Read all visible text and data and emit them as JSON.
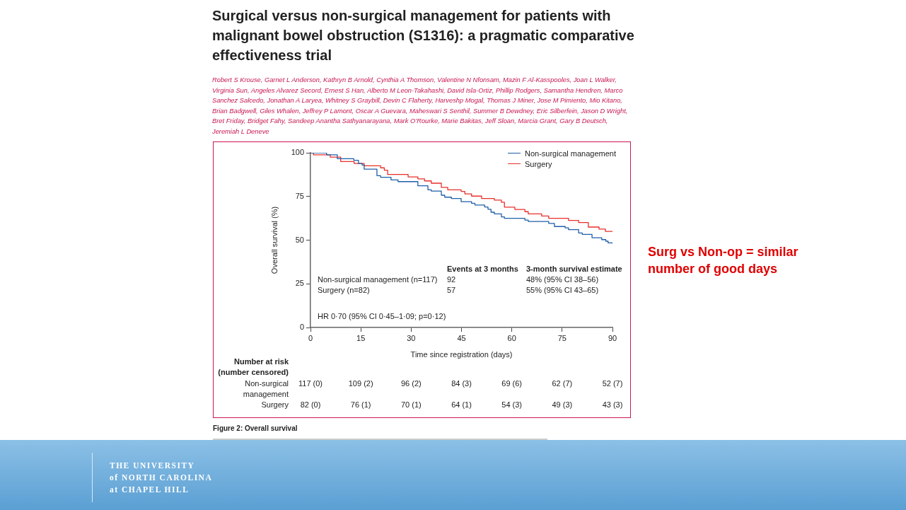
{
  "chart_data": {
    "type": "step",
    "title": "Surgical versus non-surgical management for patients with malignant bowel obstruction (S1316): a pragmatic comparative effectiveness trial",
    "xlabel": "Time since registration (days)",
    "ylabel": "Overall survival (%)",
    "xlim": [
      0,
      90
    ],
    "xticks": [
      0,
      15,
      30,
      45,
      60,
      75,
      90
    ],
    "ylim": [
      0,
      100
    ],
    "yticks": [
      0,
      25,
      50,
      75,
      100
    ],
    "grid": false,
    "legend": "top right",
    "series": [
      {
        "name": "Non-surgical management",
        "color": "#1f5fa8",
        "x": [
          0,
          4.8,
          8,
          12.9,
          14.3,
          15.4,
          16,
          19.8,
          20.9,
          24,
          26.1,
          32,
          35,
          36,
          39,
          40,
          42,
          44.9,
          48,
          49,
          51.9,
          52.9,
          53.8,
          54.8,
          56.9,
          57.8,
          63.9,
          64.9,
          71,
          72.7,
          75.9,
          76.9,
          79.9,
          81,
          83.9,
          86.8,
          88,
          88.7,
          90
        ],
        "values": [
          100,
          98.8,
          96.6,
          95.7,
          93.9,
          93,
          90.6,
          86.9,
          86,
          84.5,
          83.5,
          81.1,
          78.8,
          78.1,
          75.7,
          74.6,
          73.8,
          72,
          71.1,
          70.1,
          69,
          67.7,
          66,
          65,
          63.3,
          62.5,
          61.5,
          60.7,
          59.6,
          57.8,
          57,
          56,
          54.1,
          53.3,
          51.4,
          50.3,
          49.4,
          48.4,
          48
        ]
      },
      {
        "name": "Surgery",
        "color": "#e8302a",
        "x": [
          0,
          0.9,
          5.9,
          9,
          13,
          16,
          20.9,
          22,
          23,
          29.1,
          32,
          34,
          36,
          39,
          40.9,
          44.9,
          46,
          48,
          51,
          54.8,
          56.9,
          57.8,
          60.9,
          63.9,
          64.9,
          68.9,
          71,
          76.9,
          79.9,
          82.8,
          86,
          87.9,
          90
        ],
        "values": [
          100,
          98.8,
          97.5,
          95,
          93.9,
          92.6,
          91.4,
          90,
          87.6,
          86.2,
          85.1,
          83.9,
          82.6,
          80.2,
          78.8,
          77.9,
          76.5,
          75.2,
          73.8,
          72.9,
          71.7,
          68.9,
          67.6,
          66.3,
          65,
          63.8,
          62.5,
          61.3,
          60.1,
          57.5,
          56.3,
          55,
          55
        ]
      }
    ],
    "annotations": [
      "Robert S Krouse, Garnet L Anderson, Kathryn B Arnold, Cynthia A Thomson, Valentine N Nfonsam, Mazin F Al-Kasspooles, Joan L Walker, Virginia Sun, Angeles Alvarez Secord, Ernest S Han, Alberto M Leon-Takahashi, David Isla-Ortiz, Phillip Rodgers, Samantha Hendren, Marco Sanchez Salcedo, Jonathan A Laryea, Whitney S Graybill, Devin C Flaherty, Harveshp Mogal, Thomas J Miner, Jose M Pimiento, Mio Kitano, Brian Badgwell, Giles Whalen, Jeffrey P Lamont, Oscar A Guevara, Maheswari S Senthil, Summer B Dewdney, Eric Silberfein, Jason D Wright, Bret Friday, Bridget Fahy, Sandeep Anantha Sathyanarayana, Mark O’Rourke, Marie Bakitas, Jeff Sloan, Marcia Grant, Gary B Deutsch, Jeremiah L Deneve",
      "Events at 3 months",
      "3-month survival estimate",
      "Non-surgical management (n=117)",
      "92",
      "48% (95% CI 38–56)",
      "Surgery (n=82)",
      "57",
      "55% (95% CI 43–65)",
      "HR 0·70 (95% CI 0·45–1·09; p=0·12)",
      "Number at risk",
      "(number censored)",
      "Non-surgical management",
      "117 (0)",
      "109 (2)",
      "96 (2)",
      "84 (3)",
      "69 (6)",
      "62 (7)",
      "52 (7)",
      "Surgery",
      "82 (0)",
      "76 (1)",
      "70 (1)",
      "64 (1)",
      "54 (3)",
      "49 (3)",
      "43 (3)",
      "Figure 2: Overall survival",
      "Surg vs Non-op = similar number of good days",
      "THE UNIVERSITY",
      "of NORTH CAROLINA",
      "at CHAPEL HILL"
    ]
  }
}
